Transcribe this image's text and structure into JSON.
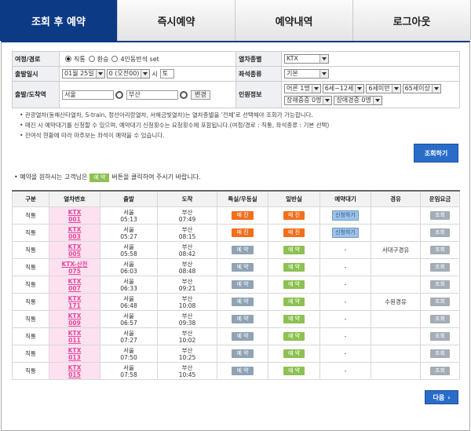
{
  "tabs": [
    "조회 후 예약",
    "즉시예약",
    "예약내역",
    "로그아웃"
  ],
  "form": {
    "journey_label": "여정/경로",
    "journey_options": [
      "직통",
      "환승",
      "4인동반석 set"
    ],
    "train_type_label": "열차종별",
    "train_type": "KTX",
    "date_label": "출발일시",
    "month_day": "01월 25일",
    "hour": "0 (오전00)",
    "hour_unit": "시",
    "weekday": "토",
    "seat_label": "좌석종류",
    "seat": "기본",
    "station_label": "출발/도착역",
    "from": "서울",
    "to": "부산",
    "change": "변경",
    "passenger_label": "인원정보",
    "passengers": [
      "어른 1명",
      "6세~12세",
      "6세미만",
      "65세이상",
      "장애중증 0명",
      "장애경증 0명"
    ]
  },
  "notes": [
    "관광열차(동해산타열차, S-train, 정선아리랑열차, 서해금빛열차)는 열차종별을 '전체'로 선택해야 조회가 가능합니다.",
    "매진 시 예약대기를 신청할 수 있으며, 예약대기 신청횟수는 요청횟수에 포함됩니다.(여정/경로 : 직통, 좌석종류 : 기본 선택)",
    "잔여석 현황에 따라 마주보는 좌석이 예약을 수 있습니다."
  ],
  "search_button": "조회하기",
  "instruction": {
    "before": "예약을 원하시는 고객님은",
    "button": "예 약",
    "after": "버튼을 클릭하여 주시기 바랍니다."
  },
  "table": {
    "headers": [
      "구분",
      "열차번호",
      "출발",
      "도착",
      "특실/우등실",
      "일반실",
      "예약대기",
      "경유",
      "운임요금"
    ],
    "rows": [
      [
        "직통",
        "KTX",
        "001",
        "서울",
        "05:13",
        "부산",
        "07:49",
        {
          "text": "매 진",
          "color": "#f26f1d"
        },
        {
          "text": "매 진",
          "color": "#f26f1d"
        },
        {
          "text": "신청하기",
          "color": "#9fc3e7"
        },
        null,
        {
          "text": "조회",
          "color": "#a3adb7"
        }
      ],
      [
        "직통",
        "KTX",
        "003",
        "서울",
        "05:27",
        "부산",
        "08:15",
        {
          "text": "매 진",
          "color": "#f26f1d"
        },
        {
          "text": "매 진",
          "color": "#f26f1d"
        },
        {
          "text": "신청하기",
          "color": "#9fc3e7"
        },
        null,
        {
          "text": "조회",
          "color": "#a3adb7"
        }
      ],
      [
        "직통",
        "KTX",
        "005",
        "서울",
        "05:58",
        "부산",
        "08:42",
        {
          "text": "예 약",
          "color": "#8fa3b5"
        },
        {
          "text": "예 약",
          "color": "#8dc153"
        },
        "-",
        "서대구경유",
        {
          "text": "조회",
          "color": "#a3adb7"
        }
      ],
      [
        "직통",
        "KTX-산천",
        "075",
        "서울",
        "06:03",
        "부산",
        "08:48",
        {
          "text": "예 약",
          "color": "#8fa3b5"
        },
        {
          "text": "예 약",
          "color": "#8dc153"
        },
        "-",
        null,
        {
          "text": "조회",
          "color": "#a3adb7"
        }
      ],
      [
        "직통",
        "KTX",
        "007",
        "서울",
        "06:33",
        "부산",
        "09:21",
        {
          "text": "예 약",
          "color": "#8fa3b5"
        },
        {
          "text": "예 약",
          "color": "#8dc153"
        },
        "-",
        null,
        {
          "text": "조회",
          "color": "#a3adb7"
        }
      ],
      [
        "직통",
        "KTX",
        "171",
        "서울",
        "06:48",
        "부산",
        "10:08",
        {
          "text": "예 약",
          "color": "#8fa3b5"
        },
        {
          "text": "예 약",
          "color": "#8dc153"
        },
        "-",
        "수원경유",
        {
          "text": "조회",
          "color": "#a3adb7"
        }
      ],
      [
        "직통",
        "KTX",
        "009",
        "서울",
        "06:57",
        "부산",
        "09:38",
        {
          "text": "예 약",
          "color": "#8fa3b5"
        },
        {
          "text": "예 약",
          "color": "#8dc153"
        },
        "-",
        null,
        {
          "text": "조회",
          "color": "#a3adb7"
        }
      ],
      [
        "직통",
        "KTX",
        "011",
        "서울",
        "07:27",
        "부산",
        "10:02",
        {
          "text": "예 약",
          "color": "#8fa3b5"
        },
        {
          "text": "예 약",
          "color": "#8dc153"
        },
        "-",
        null,
        {
          "text": "조회",
          "color": "#a3adb7"
        }
      ],
      [
        "직통",
        "KTX",
        "013",
        "서울",
        "07:50",
        "부산",
        "10:25",
        {
          "text": "예 약",
          "color": "#8fa3b5"
        },
        {
          "text": "예 약",
          "color": "#8dc153"
        },
        "-",
        null,
        {
          "text": "조회",
          "color": "#a3adb7"
        }
      ],
      [
        "직통",
        "KTX",
        "015",
        "서울",
        "07:58",
        "부산",
        "10:45",
        {
          "text": "예 약",
          "color": "#8fa3b5"
        },
        {
          "text": "예 약",
          "color": "#8dc153"
        },
        "-",
        null,
        {
          "text": "조회",
          "color": "#a3adb7"
        }
      ]
    ]
  },
  "next_button": "다음"
}
